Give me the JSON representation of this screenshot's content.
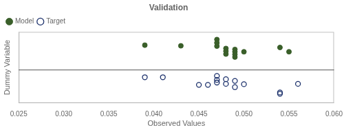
{
  "chart_data": {
    "type": "scatter",
    "title": "Validation",
    "x_label": "Observed Values",
    "y_label": "Dummy Variable",
    "xlim": [
      0.025,
      0.06
    ],
    "xticks": [
      0.025,
      {
        "value": 0.03,
        "label": "0.030"
      },
      0.035,
      {
        "value": 0.04,
        "label": "0.040"
      },
      0.045,
      {
        "value": 0.05,
        "label": "0.050"
      },
      0.055,
      {
        "value": 0.06,
        "label": "0.060"
      }
    ],
    "ylim": [
      -1.0,
      1.15
    ],
    "yticks": [],
    "tick_labels": "x",
    "grid": false,
    "legend": "upper left",
    "reference_lines": [
      {
        "y": 0.0,
        "color": "#555555"
      }
    ],
    "series": [
      {
        "name": "Model",
        "color": "#3a5f2a",
        "marker": "circle",
        "x": [
          0.039,
          0.043,
          0.047,
          0.047,
          0.047,
          0.048,
          0.048,
          0.048,
          0.049,
          0.049,
          0.049,
          0.049,
          0.05,
          0.054,
          0.055
        ],
        "values": [
          0.75,
          0.73,
          0.92,
          0.82,
          0.72,
          0.65,
          0.57,
          0.48,
          0.62,
          0.55,
          0.47,
          0.39,
          0.55,
          0.68,
          0.55
        ]
      },
      {
        "name": "Target",
        "color": "#1a2f6a",
        "marker": "open circle",
        "x": [
          0.039,
          0.041,
          0.045,
          0.046,
          0.047,
          0.047,
          0.047,
          0.048,
          0.048,
          0.049,
          0.049,
          0.05,
          0.054,
          0.054,
          0.056
        ],
        "values": [
          -0.22,
          -0.22,
          -0.45,
          -0.45,
          -0.18,
          -0.3,
          -0.38,
          -0.28,
          -0.42,
          -0.33,
          -0.52,
          -0.43,
          -0.68,
          -0.72,
          -0.42
        ]
      }
    ]
  }
}
